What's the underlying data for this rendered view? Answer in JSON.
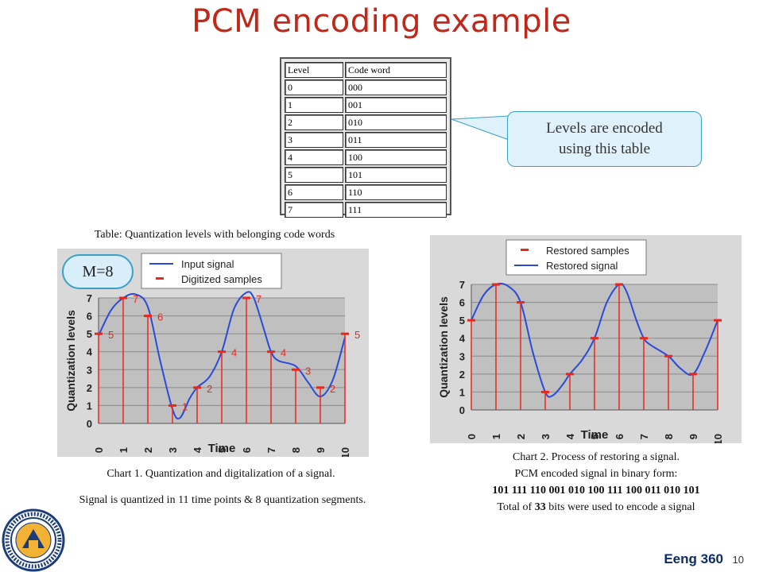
{
  "slide": {
    "title": "PCM encoding example",
    "footer": "Eeng 360",
    "page": "10"
  },
  "code_table": {
    "headers": [
      "Level",
      "Code word"
    ],
    "rows": [
      [
        "0",
        "000"
      ],
      [
        "1",
        "001"
      ],
      [
        "2",
        "010"
      ],
      [
        "3",
        "011"
      ],
      [
        "4",
        "100"
      ],
      [
        "5",
        "101"
      ],
      [
        "6",
        "110"
      ],
      [
        "7",
        "111"
      ]
    ]
  },
  "callout": {
    "line1": "Levels are encoded",
    "line2": "using this table"
  },
  "table_caption": "Table: Quantization levels with belonging code words",
  "badge": "M=8",
  "chart1_caption": "Chart 1. Quantization and digitalization of a signal.",
  "chart1_note": "Signal is quantized in 11 time points & 8 quantization segments.",
  "chart2_caption": {
    "line1": "Chart 2. Process of restoring a signal.",
    "line2": "PCM encoded signal in binary form:",
    "line3": "101 111 110 001 010 100 111 100 011 010 101",
    "line4_pre": "Total of ",
    "line4_num": "33",
    "line4_post": " bits were used to encode a signal"
  },
  "chart_data": [
    {
      "type": "line",
      "xlabel": "Time",
      "ylabel": "Quantization levels",
      "xlim": [
        0,
        10
      ],
      "ylim": [
        0,
        7
      ],
      "xticks": [
        "0",
        "1",
        "2",
        "3",
        "4",
        "5",
        "6",
        "7",
        "8",
        "9",
        "10"
      ],
      "yticks": [
        "0",
        "1",
        "2",
        "3",
        "4",
        "5",
        "6",
        "7"
      ],
      "grid": true,
      "legend_position": "top",
      "series": [
        {
          "name": "Input signal",
          "kind": "line",
          "color": "#2a4bd7",
          "x": [
            0,
            0.5,
            1,
            1.5,
            2,
            2.5,
            3,
            3.3,
            3.7,
            4,
            4.5,
            5,
            5.5,
            6,
            6.3,
            6.7,
            7,
            7.3,
            8,
            8.5,
            9,
            9.5,
            10
          ],
          "y": [
            4.9,
            6.3,
            7.0,
            7.2,
            6.5,
            3.5,
            0.8,
            0.3,
            1.4,
            2.0,
            2.6,
            4.0,
            6.4,
            7.3,
            7.0,
            5.3,
            4.0,
            3.5,
            3.2,
            2.3,
            1.5,
            2.4,
            4.8
          ]
        },
        {
          "name": "Digitized samples",
          "kind": "stem",
          "color": "#e8281c",
          "x": [
            0,
            1,
            2,
            3,
            4,
            5,
            6,
            7,
            8,
            9,
            10
          ],
          "y": [
            5,
            7,
            6,
            1,
            2,
            4,
            7,
            4,
            3,
            2,
            5
          ],
          "labels": [
            "5",
            "7",
            "6",
            "1",
            "2",
            "4",
            "7",
            "4",
            "3",
            "2",
            "5"
          ]
        }
      ]
    },
    {
      "type": "line",
      "xlabel": "Time",
      "ylabel": "Quantization levels",
      "xlim": [
        0,
        10
      ],
      "ylim": [
        0,
        7
      ],
      "xticks": [
        "0",
        "1",
        "2",
        "3",
        "4",
        "5",
        "6",
        "7",
        "8",
        "9",
        "10"
      ],
      "yticks": [
        "0",
        "1",
        "2",
        "3",
        "4",
        "5",
        "6",
        "7"
      ],
      "grid": true,
      "legend_position": "top",
      "series": [
        {
          "name": "Restored samples",
          "kind": "stem",
          "color": "#e8281c",
          "x": [
            0,
            1,
            2,
            3,
            4,
            5,
            6,
            7,
            8,
            9,
            10
          ],
          "y": [
            5,
            7,
            6,
            1,
            2,
            4,
            7,
            4,
            3,
            2,
            5
          ]
        },
        {
          "name": "Restored signal",
          "kind": "line",
          "color": "#2a4bd7",
          "x": [
            0,
            0.5,
            1,
            1.5,
            2,
            2.5,
            3,
            3.3,
            3.7,
            4,
            4.5,
            5,
            5.5,
            6,
            6.3,
            6.7,
            7,
            7.3,
            8,
            8.5,
            9,
            9.5,
            10
          ],
          "y": [
            5.0,
            6.4,
            7.0,
            6.9,
            6.0,
            3.2,
            1.0,
            0.8,
            1.4,
            2.0,
            2.8,
            4.0,
            6.0,
            7.0,
            6.6,
            5.0,
            4.0,
            3.6,
            3.0,
            2.3,
            2.0,
            3.3,
            5.0
          ]
        }
      ]
    }
  ]
}
